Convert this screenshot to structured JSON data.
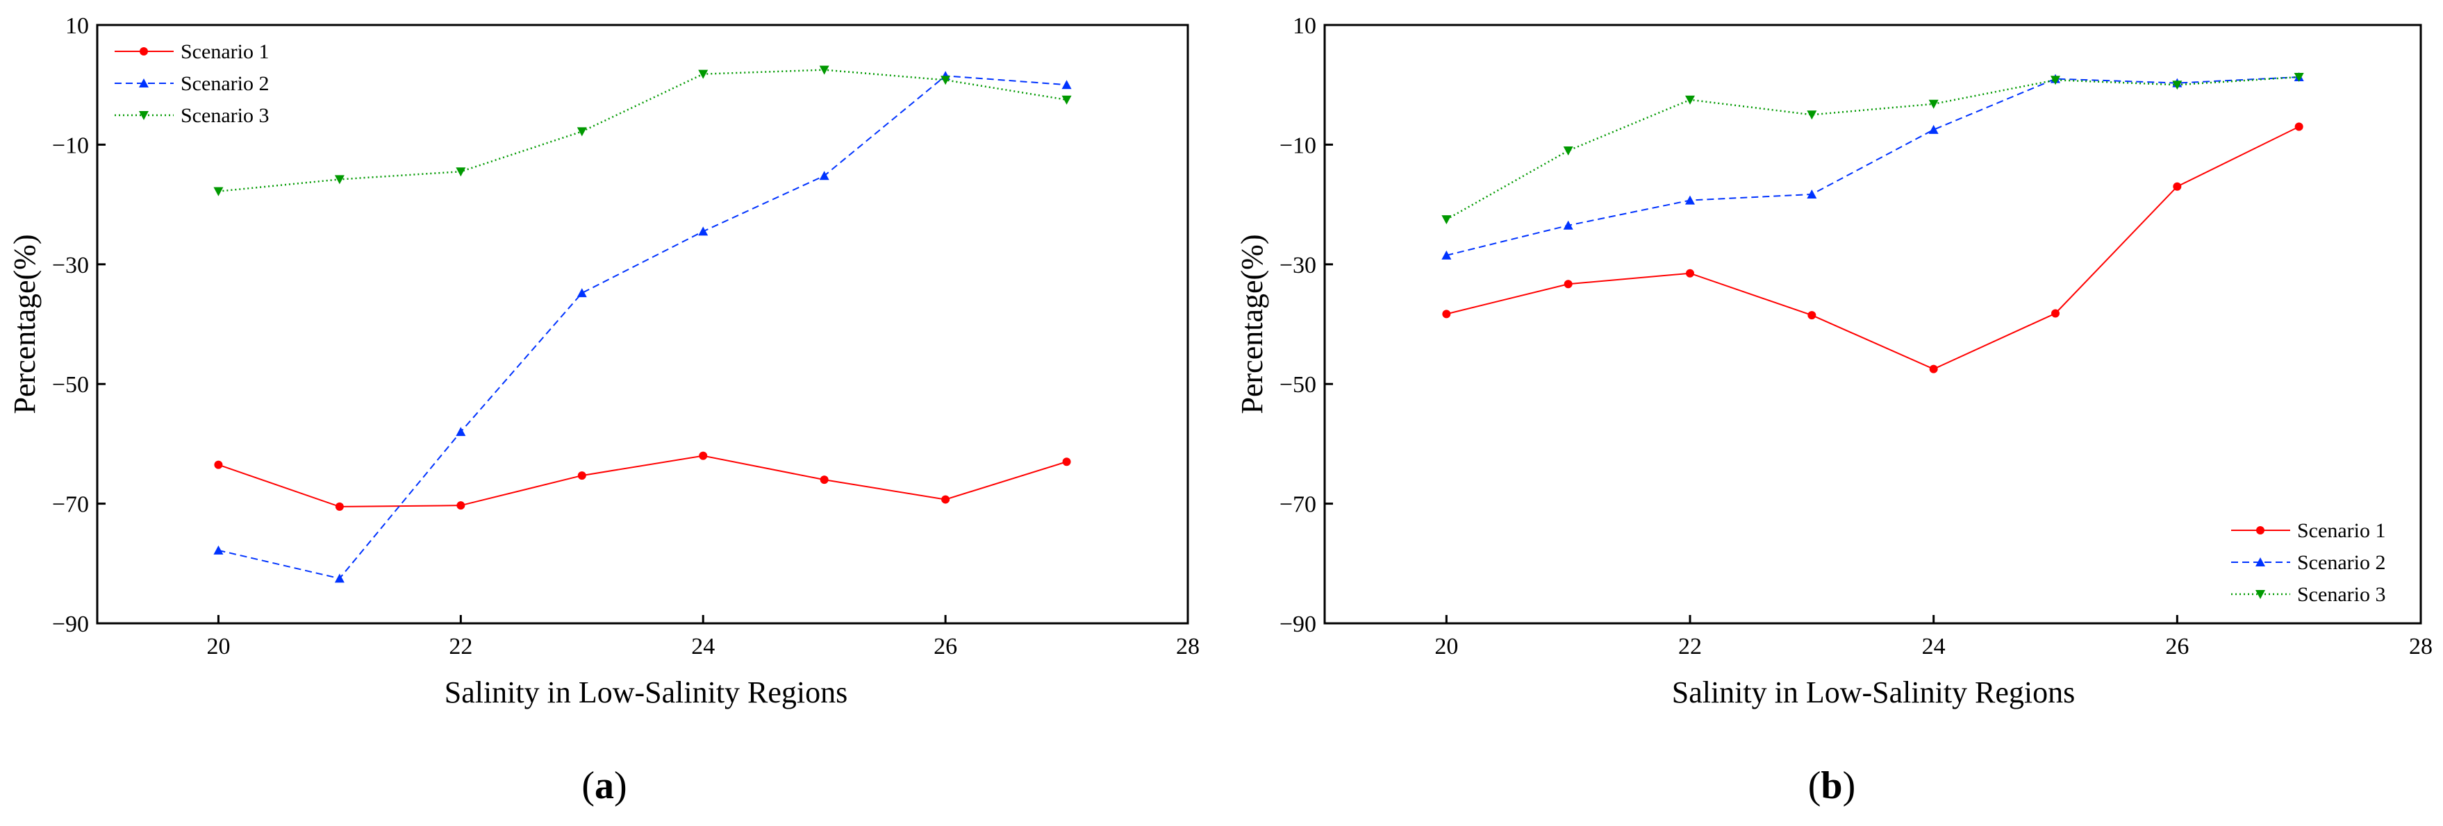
{
  "colors": {
    "scenario_1": "#ff0000",
    "scenario_2": "#0033ff",
    "scenario_3": "#009900",
    "axis": "#000000"
  },
  "chart_data": [
    {
      "type": "line",
      "panel": "a",
      "panel_label": {
        "open": "(",
        "letter": "a",
        "close": ")"
      },
      "xlabel": "Salinity in Low-Salinity Regions",
      "ylabel": "Percentage(%)",
      "xlim": [
        19,
        28
      ],
      "ylim": [
        -90,
        10
      ],
      "xticks": [
        20,
        22,
        24,
        26,
        28
      ],
      "yticks": [
        10,
        -10,
        -30,
        -50,
        -70,
        -90
      ],
      "ytick_labels": [
        "10",
        "−10",
        "−30",
        "−50",
        "−70",
        "−90"
      ],
      "legend_position": "top-left",
      "x": [
        20,
        21,
        22,
        23,
        24,
        25,
        26,
        27
      ],
      "series": [
        {
          "name": "Scenario 1",
          "color_key": "scenario_1",
          "dash": "solid",
          "marker": "circle",
          "values": [
            -63.5,
            -70.5,
            -70.3,
            -65.3,
            -62.0,
            -66.0,
            -69.3,
            -63.0
          ]
        },
        {
          "name": "Scenario 2",
          "color_key": "scenario_2",
          "dash": "dashed",
          "marker": "triangle-up",
          "values": [
            -77.8,
            -82.5,
            -58.0,
            -34.8,
            -24.5,
            -15.2,
            1.5,
            0.0
          ]
        },
        {
          "name": "Scenario 3",
          "color_key": "scenario_3",
          "dash": "dotted",
          "marker": "triangle-down",
          "values": [
            -17.8,
            -15.8,
            -14.5,
            -7.8,
            1.8,
            2.5,
            0.8,
            -2.5
          ]
        }
      ]
    },
    {
      "type": "line",
      "panel": "b",
      "panel_label": {
        "open": "(",
        "letter": "b",
        "close": ")"
      },
      "xlabel": "Salinity in Low-Salinity Regions",
      "ylabel": "Percentage(%)",
      "xlim": [
        19,
        28
      ],
      "ylim": [
        -90,
        10
      ],
      "xticks": [
        20,
        22,
        24,
        26,
        28
      ],
      "yticks": [
        10,
        -10,
        -30,
        -50,
        -70,
        -90
      ],
      "ytick_labels": [
        "10",
        "−10",
        "−30",
        "−50",
        "−70",
        "−90"
      ],
      "legend_position": "bottom-right",
      "x": [
        20,
        21,
        22,
        23,
        24,
        25,
        26,
        27
      ],
      "series": [
        {
          "name": "Scenario 1",
          "color_key": "scenario_1",
          "dash": "solid",
          "marker": "circle",
          "values": [
            -38.3,
            -33.3,
            -31.5,
            -38.5,
            -47.5,
            -38.2,
            -17.0,
            -7.0
          ]
        },
        {
          "name": "Scenario 2",
          "color_key": "scenario_2",
          "dash": "dashed",
          "marker": "triangle-up",
          "values": [
            -28.5,
            -23.5,
            -19.3,
            -18.3,
            -7.5,
            1.0,
            0.3,
            1.3
          ]
        },
        {
          "name": "Scenario 3",
          "color_key": "scenario_3",
          "dash": "dotted",
          "marker": "triangle-down",
          "values": [
            -22.5,
            -11.0,
            -2.5,
            -5.0,
            -3.2,
            0.8,
            0.0,
            1.3
          ]
        }
      ]
    }
  ]
}
